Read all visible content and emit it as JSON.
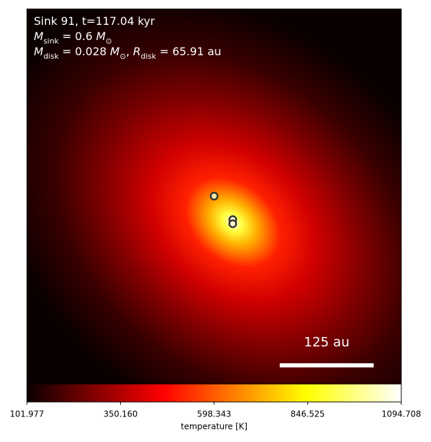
{
  "chart_data": {
    "type": "heatmap",
    "annotations": [
      [
        {
          "text": "Sink 91, t=117.04 kyr"
        }
      ],
      [
        {
          "text": "M",
          "italic": true
        },
        {
          "text": "sink",
          "sub": true
        },
        {
          "text": " = 0.6 "
        },
        {
          "text": "M",
          "italic": true
        },
        {
          "text": "⊙",
          "sub": true
        }
      ],
      [
        {
          "text": "M",
          "italic": true
        },
        {
          "text": "disk",
          "sub": true
        },
        {
          "text": " = 0.028 "
        },
        {
          "text": "M",
          "italic": true
        },
        {
          "text": "⊙",
          "sub": true
        },
        {
          "text": ", "
        },
        {
          "text": "R",
          "italic": true
        },
        {
          "text": "disk",
          "sub": true
        },
        {
          "text": " = 65.91 au"
        }
      ]
    ],
    "scale_bar_label": "125 au",
    "colormap": "hot",
    "colorbar_label": "temperature [K]",
    "clim": [
      101.977,
      1094.708
    ],
    "cticks": [
      101.977,
      {
        "value": 350.16,
        "label": "350.160"
      },
      598.343,
      846.525,
      1094.708
    ]
  }
}
